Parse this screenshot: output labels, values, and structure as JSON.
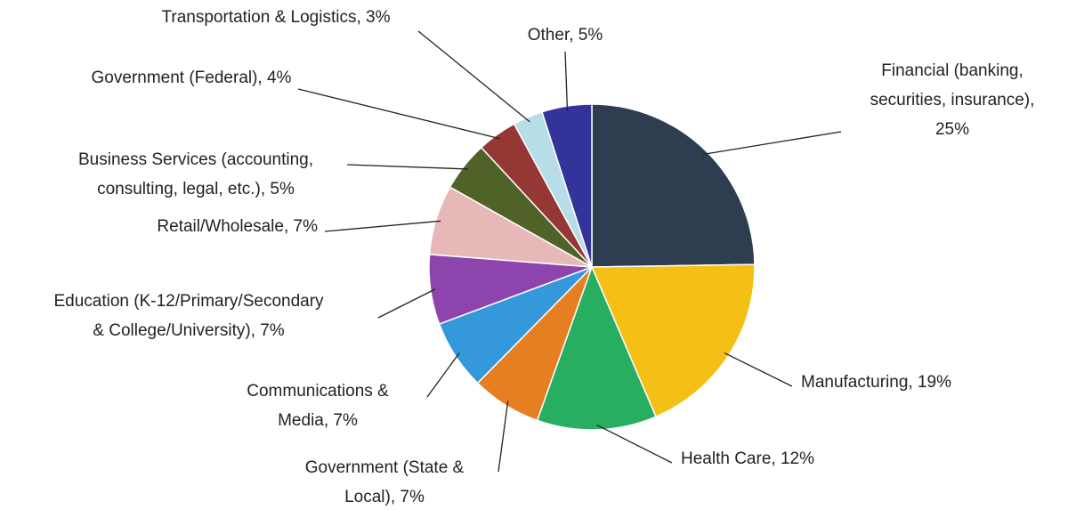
{
  "chart_data": {
    "type": "pie",
    "data_labels": [
      [
        "Financial (banking,",
        "securities, insurance),",
        "25%"
      ],
      [
        "Manufacturing, 19%"
      ],
      [
        "Health Care, 12%"
      ],
      [
        "Government (State &",
        "Local), 7%"
      ],
      [
        "Communications &",
        "Media, 7%"
      ],
      [
        "Education (K-12/Primary/Secondary",
        "& College/University), 7%"
      ],
      [
        "Retail/Wholesale, 7%"
      ],
      [
        "Business Services (accounting,",
        "consulting, legal, etc.), 5%"
      ],
      [
        "Government (Federal), 4%"
      ],
      [
        "Transportation & Logistics, 3%"
      ],
      [
        "Other, 5%"
      ]
    ],
    "values": [
      25,
      19,
      12,
      7,
      7,
      7,
      7,
      5,
      4,
      3,
      5
    ],
    "colors": [
      "#2e3e50",
      "#f5c016",
      "#27ae60",
      "#e67e22",
      "#3498db",
      "#8e44ad",
      "#e6b8b7",
      "#4f6228",
      "#953735",
      "#b7dde8",
      "#333399"
    ]
  }
}
